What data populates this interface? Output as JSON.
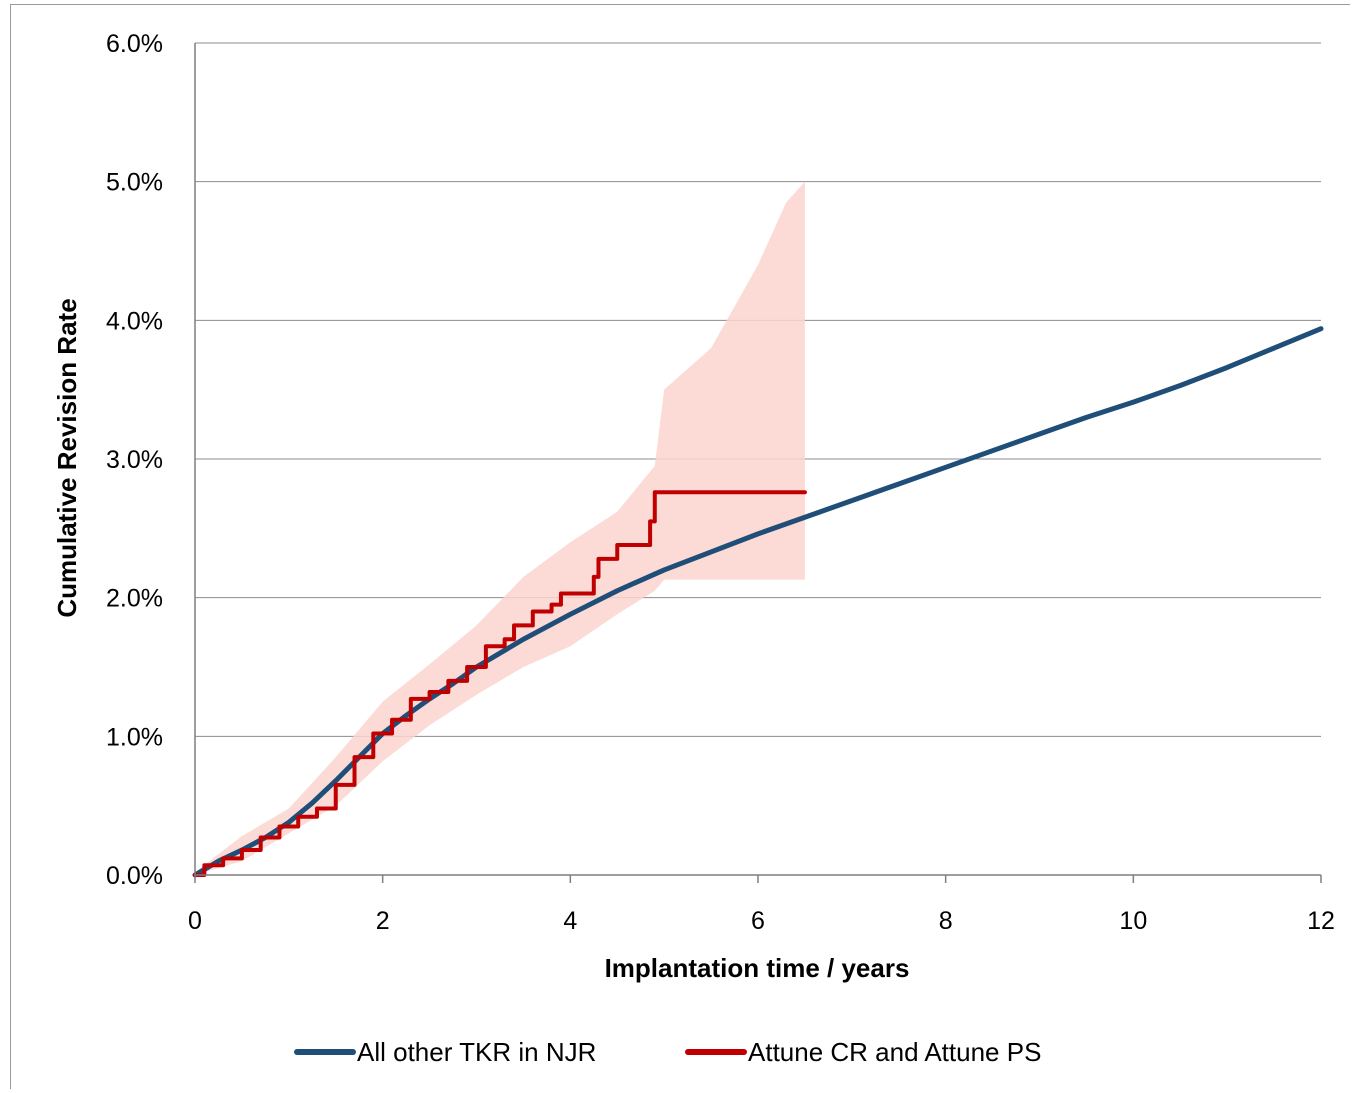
{
  "chart_data": {
    "type": "line",
    "title": "",
    "xlabel": "Implantation time  / years",
    "ylabel": "Cumulative Revision Rate",
    "xlim": [
      0,
      12
    ],
    "ylim": [
      0,
      6
    ],
    "x_ticks": [
      "0",
      "2",
      "4",
      "6",
      "8",
      "10",
      "12"
    ],
    "y_ticks": [
      "0.0%",
      "1.0%",
      "2.0%",
      "3.0%",
      "4.0%",
      "5.0%",
      "6.0%"
    ],
    "grid": "horizontal",
    "legend_position": "bottom",
    "series": [
      {
        "name": "All other TKR in NJR",
        "color": "#1f4e79",
        "x": [
          0,
          0.25,
          0.5,
          0.75,
          1.0,
          1.25,
          1.5,
          1.75,
          2.0,
          2.25,
          2.5,
          2.75,
          3.0,
          3.5,
          4.0,
          4.5,
          5.0,
          5.5,
          6.0,
          6.5,
          7.0,
          7.5,
          8.0,
          8.5,
          9.0,
          9.5,
          10.0,
          10.5,
          11.0,
          11.5,
          12.0
        ],
        "y": [
          0,
          0.1,
          0.18,
          0.27,
          0.38,
          0.52,
          0.68,
          0.85,
          1.02,
          1.15,
          1.27,
          1.38,
          1.5,
          1.7,
          1.88,
          2.05,
          2.2,
          2.33,
          2.46,
          2.58,
          2.7,
          2.82,
          2.94,
          3.06,
          3.18,
          3.3,
          3.41,
          3.53,
          3.66,
          3.8,
          3.94
        ]
      },
      {
        "name": "Attune CR and Attune PS",
        "color": "#c00000",
        "x": [
          0,
          0.1,
          0.3,
          0.5,
          0.7,
          0.9,
          1.1,
          1.3,
          1.5,
          1.7,
          1.9,
          2.1,
          2.3,
          2.5,
          2.7,
          2.9,
          3.1,
          3.3,
          3.4,
          3.6,
          3.8,
          3.9,
          4.2,
          4.25,
          4.3,
          4.5,
          4.8,
          4.85,
          4.9,
          5.2,
          5.5,
          6.0,
          6.5
        ],
        "y": [
          0,
          0.07,
          0.12,
          0.18,
          0.27,
          0.35,
          0.42,
          0.48,
          0.65,
          0.85,
          1.02,
          1.12,
          1.27,
          1.32,
          1.4,
          1.5,
          1.65,
          1.7,
          1.8,
          1.9,
          1.95,
          2.03,
          2.03,
          2.15,
          2.28,
          2.38,
          2.38,
          2.55,
          2.76,
          2.76,
          2.76,
          2.76,
          2.76
        ]
      }
    ],
    "confidence_band": {
      "series": "Attune CR and Attune PS",
      "color": "#fbd3cf",
      "x": [
        0,
        0.5,
        1.0,
        1.5,
        2.0,
        2.5,
        3.0,
        3.5,
        4.0,
        4.5,
        4.9,
        5.0,
        5.5,
        6.0,
        6.3,
        6.5
      ],
      "upper": [
        0.02,
        0.28,
        0.48,
        0.85,
        1.25,
        1.52,
        1.8,
        2.15,
        2.4,
        2.62,
        2.95,
        3.5,
        3.8,
        4.4,
        4.85,
        5.0
      ],
      "lower": [
        0,
        0.1,
        0.3,
        0.5,
        0.82,
        1.08,
        1.3,
        1.5,
        1.65,
        1.88,
        2.05,
        2.13,
        2.13,
        2.13,
        2.13,
        2.13
      ]
    }
  }
}
